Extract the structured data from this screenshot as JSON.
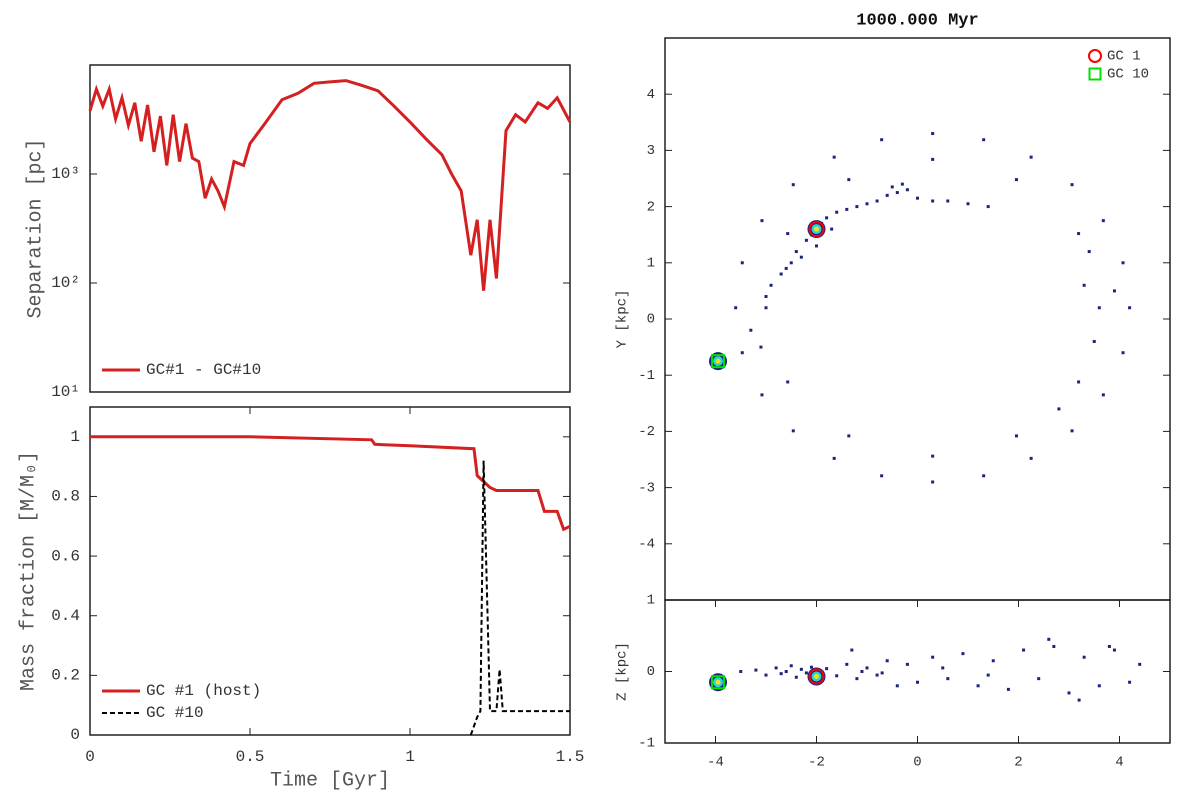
{
  "chart_data": [
    {
      "type": "line",
      "ylabel": "Separation [pc]",
      "log_y": true,
      "xlim": [
        0,
        1.5
      ],
      "ylim": [
        10,
        10000
      ],
      "yticks": [
        {
          "value": 10,
          "label": "10¹"
        },
        {
          "value": 100,
          "label": "10²"
        },
        {
          "value": 1000,
          "label": "10³"
        }
      ],
      "legend": "lower left",
      "series": [
        {
          "name": "GC#1 - GC#10",
          "color": "#d42020",
          "dash": false,
          "x": [
            0,
            0.02,
            0.04,
            0.06,
            0.08,
            0.1,
            0.12,
            0.14,
            0.16,
            0.18,
            0.2,
            0.22,
            0.24,
            0.26,
            0.28,
            0.3,
            0.32,
            0.34,
            0.36,
            0.38,
            0.4,
            0.42,
            0.45,
            0.48,
            0.5,
            0.55,
            0.6,
            0.65,
            0.7,
            0.75,
            0.8,
            0.85,
            0.9,
            0.95,
            1.0,
            1.05,
            1.1,
            1.13,
            1.16,
            1.19,
            1.21,
            1.23,
            1.25,
            1.27,
            1.3,
            1.33,
            1.36,
            1.4,
            1.43,
            1.46,
            1.5
          ],
          "values": [
            3800,
            6000,
            4200,
            6000,
            3200,
            5000,
            2800,
            4500,
            2000,
            4300,
            1600,
            3400,
            1200,
            3500,
            1300,
            2900,
            1400,
            1300,
            600,
            900,
            700,
            500,
            1300,
            1200,
            1900,
            3000,
            4800,
            5500,
            6800,
            7000,
            7200,
            6500,
            5800,
            4200,
            3000,
            2100,
            1500,
            1000,
            700,
            180,
            380,
            85,
            380,
            110,
            2500,
            3500,
            3000,
            4500,
            4000,
            5000,
            3000
          ]
        }
      ]
    },
    {
      "type": "line",
      "xlabel": "Time [Gyr]",
      "ylabel": "Mass fraction [M/M₀]",
      "xlim": [
        0,
        1.5
      ],
      "ylim": [
        0,
        1.1
      ],
      "xticks": [
        0,
        0.5,
        1,
        1.5
      ],
      "yticks": [
        0,
        0.2,
        0.4,
        0.6,
        0.8,
        1
      ],
      "legend": "lower left",
      "series": [
        {
          "name": "GC #1 (host)",
          "color": "#d42020",
          "dash": false,
          "x": [
            0,
            0.5,
            0.88,
            0.89,
            1.0,
            1.2,
            1.21,
            1.25,
            1.27,
            1.4,
            1.42,
            1.46,
            1.48,
            1.5
          ],
          "values": [
            1,
            1,
            0.99,
            0.975,
            0.97,
            0.96,
            0.87,
            0.83,
            0.82,
            0.82,
            0.75,
            0.75,
            0.69,
            0.7
          ]
        },
        {
          "name": "GC #10",
          "color": "#000000",
          "dash": true,
          "x": [
            1.19,
            1.21,
            1.22,
            1.23,
            1.24,
            1.25,
            1.27,
            1.28,
            1.29,
            1.5
          ],
          "values": [
            0,
            0.06,
            0.08,
            0.92,
            0.5,
            0.08,
            0.08,
            0.22,
            0.08,
            0.08
          ]
        }
      ]
    },
    {
      "type": "scatter",
      "title": "1000.000 Myr",
      "ylabel": "Y [kpc]",
      "xlim": [
        -5,
        5
      ],
      "ylim": [
        -5,
        5
      ],
      "yticks": [
        -4,
        -3,
        -2,
        -1,
        0,
        1,
        2,
        3,
        4
      ],
      "color": "#1a237e",
      "legend": "upper right",
      "x": [
        4.2,
        4.07,
        3.68,
        3.06,
        2.25,
        1.31,
        0.3,
        -0.71,
        -1.65,
        -2.46,
        -3.08,
        -3.47,
        -3.6,
        -3.47,
        -3.08,
        -2.46,
        -1.65,
        -0.71,
        0.3,
        1.31,
        2.25,
        3.06,
        3.68,
        4.07,
        3.6,
        3.19,
        1.96,
        0.3,
        -1.36,
        -2.57,
        -3.0,
        -2.57,
        -1.36,
        0.3,
        1.96,
        3.19,
        3.3,
        3.5,
        3.9,
        2.8,
        3.4,
        -2.9,
        -2.7,
        -2.5,
        -2.4,
        -2.2,
        -2.1,
        -1.9,
        -1.8,
        -1.6,
        -1.4,
        -1.2,
        -1.0,
        -0.8,
        -0.6,
        -0.4,
        -0.2,
        0,
        0.3,
        0.6,
        1.0,
        1.4,
        -2.6,
        -2.3,
        -2.0,
        -1.7,
        -0.5,
        -0.3,
        -3.0,
        -3.3,
        -3.1
      ],
      "values": [
        0.2,
        1.0,
        1.75,
        2.39,
        2.88,
        3.19,
        3.3,
        3.19,
        2.88,
        2.39,
        1.75,
        1.0,
        0.2,
        -0.6,
        -1.35,
        -1.99,
        -2.48,
        -2.79,
        -2.9,
        -2.79,
        -2.48,
        -1.99,
        -1.35,
        -0.6,
        0.2,
        1.52,
        2.48,
        2.84,
        2.48,
        1.52,
        0.2,
        -1.12,
        -2.08,
        -2.44,
        -2.08,
        -1.12,
        0.6,
        -0.4,
        0.5,
        -1.6,
        1.2,
        0.6,
        0.8,
        1.0,
        1.2,
        1.4,
        1.5,
        1.7,
        1.8,
        1.9,
        1.95,
        2.0,
        2.05,
        2.1,
        2.2,
        2.25,
        2.3,
        2.15,
        2.1,
        2.1,
        2.05,
        2.0,
        0.9,
        1.1,
        1.3,
        1.6,
        2.35,
        2.4,
        0.4,
        -0.2,
        -0.5
      ],
      "markers": [
        {
          "name": "GC 1",
          "shape": "circle",
          "color": "#ff0000",
          "x": -2,
          "y": 1.6
        },
        {
          "name": "GC 10",
          "shape": "square",
          "color": "#00e000",
          "x": -3.95,
          "y": -0.75
        }
      ]
    },
    {
      "type": "scatter",
      "ylabel": "Z [kpc]",
      "xlim": [
        -5,
        5
      ],
      "ylim": [
        -1,
        1
      ],
      "xticks": [
        -4,
        -2,
        0,
        2,
        4
      ],
      "yticks": [
        -1,
        0,
        1
      ],
      "color": "#1a237e",
      "x": [
        -3.2,
        -3.0,
        -2.8,
        -2.6,
        -2.5,
        -2.4,
        -2.3,
        -2.2,
        -1.8,
        -1.6,
        -1.4,
        -1.2,
        -1.0,
        -0.8,
        -0.6,
        -0.4,
        -0.2,
        0,
        0.3,
        0.6,
        0.9,
        1.2,
        1.5,
        1.8,
        2.1,
        2.4,
        2.7,
        3.0,
        3.3,
        3.6,
        3.9,
        4.2,
        4.4,
        -2.7,
        -2.1,
        -1.1,
        -0.7,
        0.5,
        1.4,
        2.6,
        3.2,
        3.8,
        -3.5,
        -1.3
      ],
      "values": [
        0.02,
        -0.05,
        0.05,
        0.0,
        0.08,
        -0.08,
        0.03,
        -0.02,
        0.04,
        -0.06,
        0.1,
        -0.1,
        0.05,
        -0.05,
        0.15,
        -0.2,
        0.1,
        -0.15,
        0.2,
        -0.1,
        0.25,
        -0.2,
        0.15,
        -0.25,
        0.3,
        -0.1,
        0.35,
        -0.3,
        0.2,
        -0.2,
        0.3,
        -0.15,
        0.1,
        -0.03,
        0.06,
        0.0,
        -0.02,
        0.05,
        -0.05,
        0.45,
        -0.4,
        0.35,
        0.0,
        0.3
      ],
      "markers": [
        {
          "name": "GC 1",
          "shape": "circle",
          "color": "#ff0000",
          "x": -2,
          "y": -0.07
        },
        {
          "name": "GC 10",
          "shape": "square",
          "color": "#00e000",
          "x": -3.95,
          "y": -0.15
        }
      ]
    }
  ]
}
